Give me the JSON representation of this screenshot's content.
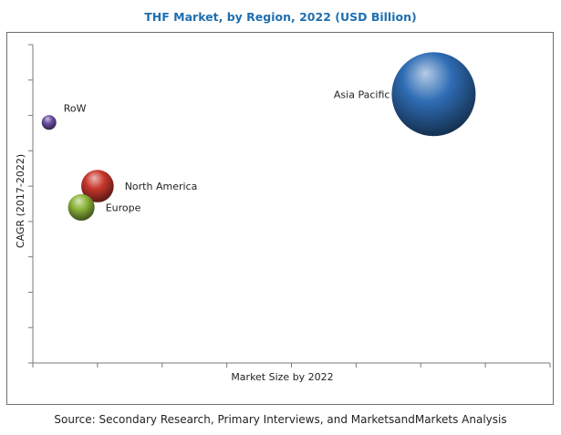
{
  "chart_data": {
    "type": "scatter",
    "subtype": "bubble",
    "title": "THF Market, by Region, 2022 (USD Billion)",
    "xlabel": "Market Size by 2022",
    "ylabel": "CAGR (2017-2022)",
    "xlim": [
      0,
      8
    ],
    "ylim": [
      0,
      9
    ],
    "grid": false,
    "axis_tick_labels_shown": false,
    "bubble_size_meaning": "THF market size (USD Billion), relative",
    "points": [
      {
        "name": "RoW",
        "x": 0.25,
        "y": 6.8,
        "size": 0.05,
        "color": "#6b4fa3"
      },
      {
        "name": "North America",
        "x": 1.0,
        "y": 5.0,
        "size": 0.6,
        "color": "#c8372d"
      },
      {
        "name": "Europe",
        "x": 0.75,
        "y": 4.4,
        "size": 0.4,
        "color": "#8db43a"
      },
      {
        "name": "Asia Pacific",
        "x": 6.2,
        "y": 7.6,
        "size": 4.0,
        "color": "#2f6db5"
      }
    ]
  },
  "footer": {
    "source": "Source: Secondary Research, Primary Interviews, and MarketsandMarkets Analysis"
  }
}
